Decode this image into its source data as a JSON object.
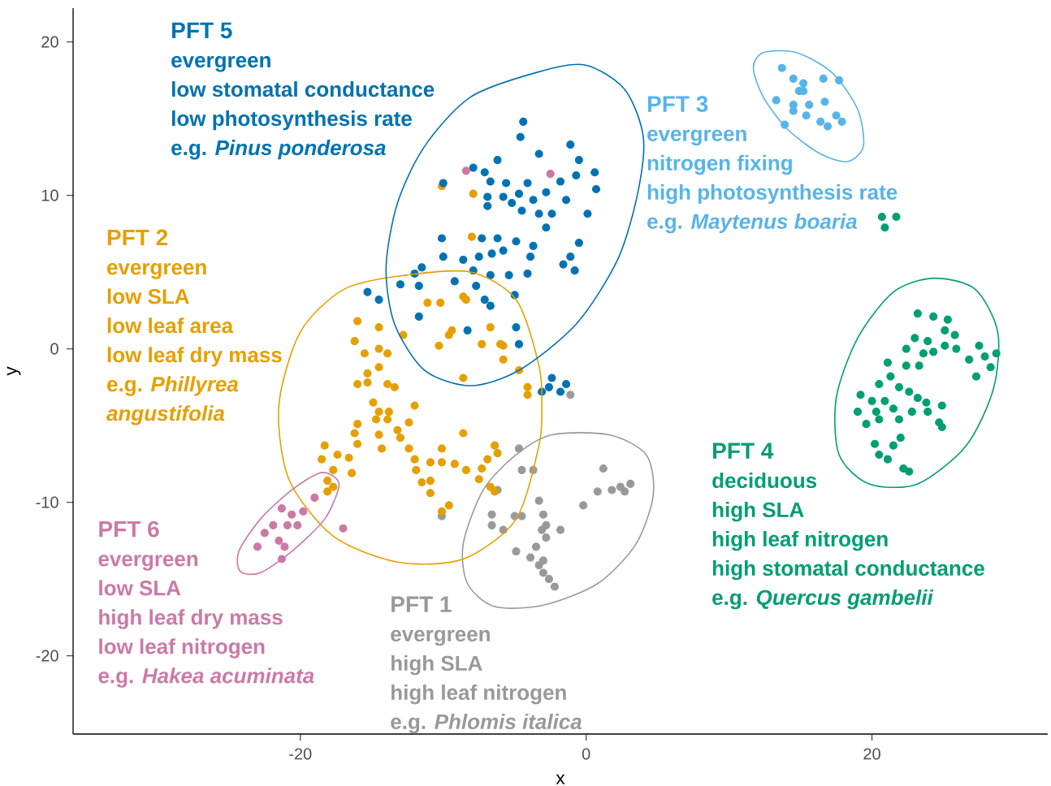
{
  "chart_data": {
    "type": "scatter",
    "xlabel": "x",
    "ylabel": "y",
    "xlim": [
      -35.9,
      32.3
    ],
    "ylim": [
      -25.1,
      22.2
    ],
    "xticks": [
      -20,
      0,
      20
    ],
    "yticks": [
      -20,
      -10,
      0,
      10,
      20
    ],
    "marker": "circle",
    "series": [
      {
        "name": "PFT 1",
        "color": "#999999",
        "x": [
          -4.7,
          -4.5,
          -3.7,
          1.2,
          0.8,
          1.8,
          2.4,
          3.1,
          2.7,
          -6.2,
          -3.3,
          -0.2,
          -6.6,
          -5.0,
          -4.5,
          -3.0,
          -2.8,
          -6.6,
          -5.8,
          -3.1,
          -1.8,
          -2.8,
          -3.5,
          -4.9,
          -3.9,
          -3.3,
          -3.0,
          -3.0,
          -2.6,
          -2.2,
          -10.1,
          -1.1
        ],
        "values": [
          -6.5,
          -7.9,
          -7.9,
          -7.8,
          -9.3,
          -9.2,
          -9.0,
          -8.8,
          -9.3,
          -9.2,
          -9.9,
          -10.2,
          -10.8,
          -10.9,
          -10.9,
          -10.8,
          -11.5,
          -11.5,
          -11.8,
          -11.8,
          -11.8,
          -12.3,
          -12.9,
          -13.2,
          -13.6,
          -14.1,
          -13.8,
          -14.6,
          -15.0,
          -15.5,
          -10.9,
          -3.0
        ]
      },
      {
        "name": "PFT 2",
        "color": "#e69f00",
        "x": [
          -11.1,
          -10.2,
          -8.4,
          -16.0,
          -14.5,
          -16.2,
          -12.8,
          -9.4,
          -6.7,
          -10.3,
          -7.3,
          -6.0,
          -15.5,
          -14.5,
          -13.9,
          -5.8,
          -14.5,
          -15.3,
          -16.0,
          -13.9,
          -13.4,
          -15.3,
          -8.6,
          -4.7,
          -4.1,
          -14.9,
          -14.5,
          -13.8,
          -12.0,
          -14.7,
          -13.9,
          -12.4,
          -16.0,
          -16.2,
          -14.5,
          -13.2,
          -13.0,
          -8.6,
          -14.3,
          -16.0,
          -12.4,
          -10.1,
          -6.4,
          -18.3,
          -17.4,
          -16.6,
          -12.0,
          -10.9,
          -10.1,
          -9.2,
          -8.4,
          -7.3,
          -6.9,
          -6.2,
          -18.5,
          -17.7,
          -16.4,
          -11.9,
          -11.5,
          -10.9,
          -7.5,
          -18.1,
          -10.9,
          -6.7,
          -6.4,
          -9.6,
          -10.1,
          -4.1,
          -10.1,
          -7.9,
          -8.0,
          -8.6,
          -9.6,
          -5.8,
          -17.7,
          -18.1
        ],
        "values": [
          3.0,
          3.0,
          3.2,
          1.8,
          1.4,
          0.5,
          0.9,
          1.2,
          1.4,
          0.2,
          0.3,
          0.3,
          -0.3,
          0.0,
          -0.3,
          -0.7,
          -1.2,
          -1.6,
          -2.3,
          -2.3,
          -2.5,
          -2.2,
          -1.9,
          -1.4,
          -3.0,
          -3.5,
          -4.1,
          -4.1,
          -3.7,
          -4.6,
          -4.6,
          -4.8,
          -4.9,
          -5.5,
          -5.6,
          -5.3,
          -5.8,
          -5.5,
          -6.5,
          -6.2,
          -6.5,
          -6.5,
          -6.3,
          -6.3,
          -6.9,
          -7.1,
          -7.2,
          -7.4,
          -7.4,
          -7.5,
          -7.9,
          -7.8,
          -7.2,
          -6.8,
          -7.2,
          -7.9,
          -8.1,
          -7.9,
          -8.7,
          -8.6,
          -8.5,
          -8.6,
          -9.4,
          -9.0,
          -9.3,
          -10.2,
          -10.6,
          -2.5,
          10.6,
          10.1,
          7.3,
          3.4,
          0.9,
          0.2,
          -9.0,
          -9.3
        ]
      },
      {
        "name": "PFT 3",
        "color": "#56b4e9",
        "x": [
          13.7,
          14.5,
          15.2,
          14.9,
          13.3,
          14.5,
          15.6,
          16.6,
          17.7,
          16.7,
          17.5,
          16.4,
          15.4,
          13.9,
          14.5,
          16.9,
          17.9,
          15.2
        ],
        "values": [
          18.3,
          17.6,
          17.3,
          16.8,
          16.2,
          15.9,
          15.9,
          17.6,
          17.5,
          16.1,
          15.2,
          14.8,
          15.2,
          14.6,
          15.5,
          14.5,
          14.8,
          16.8
        ]
      },
      {
        "name": "PFT 4",
        "color": "#009e73",
        "x": [
          23.2,
          24.3,
          25.3,
          25.1,
          25.8,
          23.0,
          23.9,
          25.1,
          25.9,
          22.4,
          23.6,
          24.3,
          27.5,
          26.8,
          27.9,
          28.7,
          21.1,
          22.4,
          23.3,
          27.3,
          28.3,
          21.3,
          20.5,
          21.9,
          22.6,
          19.2,
          20.0,
          20.9,
          23.2,
          23.8,
          24.9,
          19.0,
          20.3,
          21.5,
          22.8,
          23.9,
          19.6,
          20.5,
          21.9,
          24.7,
          24.9,
          20.2,
          21.5,
          22.0,
          20.5,
          21.1,
          22.2,
          22.6,
          20.7,
          21.7,
          20.9
        ],
        "values": [
          2.3,
          2.1,
          1.9,
          1.2,
          0.9,
          0.7,
          0.5,
          0.2,
          0.0,
          0.0,
          -0.3,
          -0.2,
          0.2,
          -0.7,
          -0.5,
          -0.3,
          -0.9,
          -1.1,
          -1.1,
          -1.8,
          -1.2,
          -1.8,
          -2.3,
          -2.5,
          -2.8,
          -3.0,
          -3.4,
          -3.4,
          -3.2,
          -3.5,
          -3.7,
          -4.1,
          -4.1,
          -3.9,
          -4.1,
          -4.1,
          -4.9,
          -4.6,
          -4.6,
          -4.8,
          -5.1,
          -6.2,
          -6.3,
          -5.8,
          -6.9,
          -7.2,
          -7.8,
          -8.0,
          8.6,
          8.6,
          7.9
        ]
      },
      {
        "name": "PFT 5",
        "color": "#0072b2",
        "x": [
          -4.4,
          -4.6,
          -1.1,
          -0.5,
          -3.3,
          -7.9,
          -6.2,
          -7.1,
          -6.7,
          -5.6,
          -4.1,
          -1.8,
          -0.7,
          0.6,
          0.7,
          -10.0,
          -6.9,
          -5.8,
          -4.7,
          -3.7,
          -2.8,
          -1.4,
          -5.2,
          -6.9,
          -4.5,
          -3.3,
          -2.4,
          0.1,
          -2.8,
          -10.1,
          -7.3,
          -6.2,
          -4.9,
          -3.7,
          -0.5,
          -10.0,
          -8.6,
          -7.5,
          -6.6,
          -5.8,
          -3.9,
          -1.1,
          -1.6,
          -0.8,
          -11.5,
          -9.2,
          -7.9,
          -6.7,
          -5.4,
          -4.1,
          -13.0,
          -12.0,
          -11.7,
          -7.7,
          -7.1,
          -6.7,
          -5.0,
          -14.5,
          -11.7,
          -8.3,
          -4.7,
          -2.4,
          -3.1,
          -1.8,
          -1.4,
          -15.3,
          -4.9,
          -2.6
        ],
        "values": [
          14.8,
          13.8,
          13.3,
          12.3,
          12.7,
          11.8,
          12.3,
          11.5,
          10.9,
          10.8,
          10.8,
          10.9,
          11.3,
          11.5,
          10.4,
          10.8,
          9.9,
          9.9,
          10.1,
          9.7,
          10.2,
          9.7,
          9.5,
          9.3,
          9.0,
          8.8,
          8.8,
          8.8,
          7.9,
          7.2,
          7.2,
          7.2,
          7.0,
          6.7,
          6.9,
          6.0,
          5.8,
          6.0,
          6.2,
          6.4,
          6.0,
          6.0,
          5.5,
          5.1,
          5.3,
          4.4,
          5.1,
          4.8,
          4.8,
          4.9,
          4.2,
          4.9,
          4.1,
          4.1,
          3.2,
          2.8,
          3.5,
          3.2,
          2.1,
          1.2,
          0.3,
          -1.9,
          -2.8,
          -2.8,
          -2.3,
          3.7,
          1.4,
          -2.5
        ]
      },
      {
        "name": "PFT 6",
        "color": "#cc79a7",
        "x": [
          -21.3,
          -20.6,
          -19.8,
          -19.0,
          -21.9,
          -20.9,
          -20.2,
          -22.5,
          -21.5,
          -23.0,
          -21.1,
          -21.3,
          -17.0,
          -8.4,
          -2.5
        ],
        "values": [
          -10.4,
          -10.8,
          -10.6,
          -9.7,
          -11.5,
          -11.5,
          -11.5,
          -12.0,
          -12.5,
          -12.9,
          -12.9,
          -13.7,
          -11.7,
          11.6,
          11.4
        ]
      }
    ],
    "annotations": [
      "evergreen",
      "high SLA",
      "high leaf nitrogen",
      "e.g. *Phlomis italica*",
      "evergreen",
      "low SLA",
      "low leaf area",
      "low leaf dry mass",
      "e.g. *Phillyrea*",
      "*angustifolia*",
      "evergreen",
      "nitrogen fixing",
      "high photosynthesis rate",
      "e.g. *Maytenus boaria*",
      "deciduous",
      "high SLA",
      "high leaf nitrogen",
      "high stomatal conductance",
      "e.g. *Quercus gambelii*",
      "evergreen",
      "low stomatal conductance",
      "low photosynthesis rate",
      "e.g. *Pinus ponderosa*",
      "evergreen",
      "low SLA",
      "high leaf dry mass",
      "low leaf nitrogen",
      "e.g. *Hakea acuminata*"
    ]
  }
}
